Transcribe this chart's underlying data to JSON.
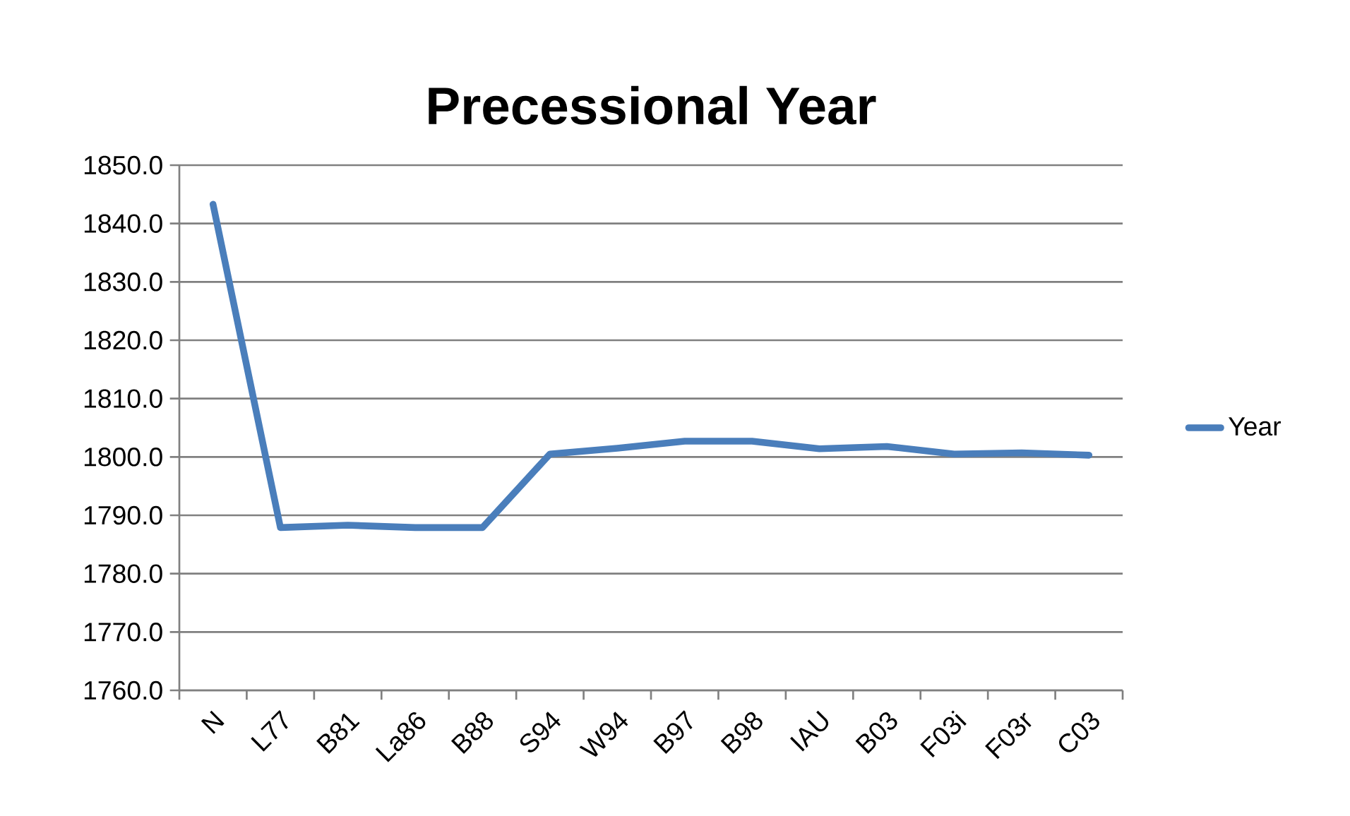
{
  "chart_data": {
    "type": "line",
    "title": "Precessional Year",
    "categories": [
      "N",
      "L77",
      "B81",
      "La86",
      "B88",
      "S94",
      "W94",
      "B97",
      "B98",
      "IAU",
      "B03",
      "F03i",
      "F03r",
      "C03"
    ],
    "series": [
      {
        "name": "Year",
        "color": "#4a7ebb",
        "values": [
          1843.3,
          1787.9,
          1788.3,
          1787.9,
          1787.9,
          1800.5,
          1801.5,
          1802.7,
          1802.7,
          1801.4,
          1801.8,
          1800.5,
          1800.7,
          1800.3
        ]
      }
    ],
    "ylim": [
      1760,
      1850
    ],
    "yticks": [
      {
        "value": 1760,
        "label": "1760.0"
      },
      {
        "value": 1770,
        "label": "1770.0"
      },
      {
        "value": 1780,
        "label": "1780.0"
      },
      {
        "value": 1790,
        "label": "1790.0"
      },
      {
        "value": 1800,
        "label": "1800.0"
      },
      {
        "value": 1810,
        "label": "1810.0"
      },
      {
        "value": 1820,
        "label": "1820.0"
      },
      {
        "value": 1830,
        "label": "1830.0"
      },
      {
        "value": 1840,
        "label": "1840.0"
      },
      {
        "value": 1850,
        "label": "1850.0"
      }
    ],
    "grid": "y",
    "legend": "right",
    "marker": "none",
    "line_style": "solid"
  }
}
